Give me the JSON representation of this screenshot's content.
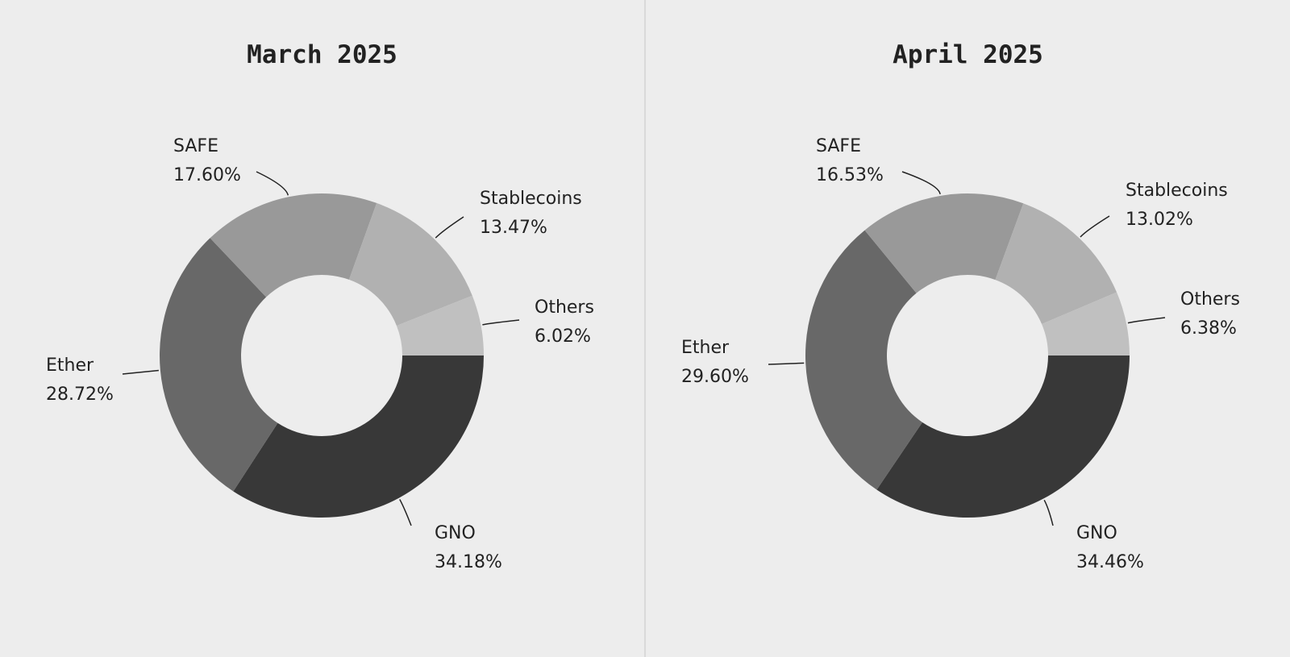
{
  "chart_data": [
    {
      "type": "pie",
      "title": "March 2025",
      "donut": true,
      "slices": [
        {
          "label": "GNO",
          "value": 34.18,
          "value_label": "34.18%",
          "color": "#383838"
        },
        {
          "label": "Ether",
          "value": 28.72,
          "value_label": "28.72%",
          "color": "#686868"
        },
        {
          "label": "SAFE",
          "value": 17.6,
          "value_label": "17.60%",
          "color": "#999999"
        },
        {
          "label": "Stablecoins",
          "value": 13.47,
          "value_label": "13.47%",
          "color": "#b1b1b1"
        },
        {
          "label": "Others",
          "value": 6.02,
          "value_label": "6.02%",
          "color": "#c0c0c0"
        }
      ]
    },
    {
      "type": "pie",
      "title": "April 2025",
      "donut": true,
      "slices": [
        {
          "label": "GNO",
          "value": 34.46,
          "value_label": "34.46%",
          "color": "#383838"
        },
        {
          "label": "Ether",
          "value": 29.6,
          "value_label": "29.60%",
          "color": "#686868"
        },
        {
          "label": "SAFE",
          "value": 16.53,
          "value_label": "16.53%",
          "color": "#999999"
        },
        {
          "label": "Stablecoins",
          "value": 13.02,
          "value_label": "13.02%",
          "color": "#b1b1b1"
        },
        {
          "label": "Others",
          "value": 6.38,
          "value_label": "6.38%",
          "color": "#c0c0c0"
        }
      ]
    }
  ]
}
